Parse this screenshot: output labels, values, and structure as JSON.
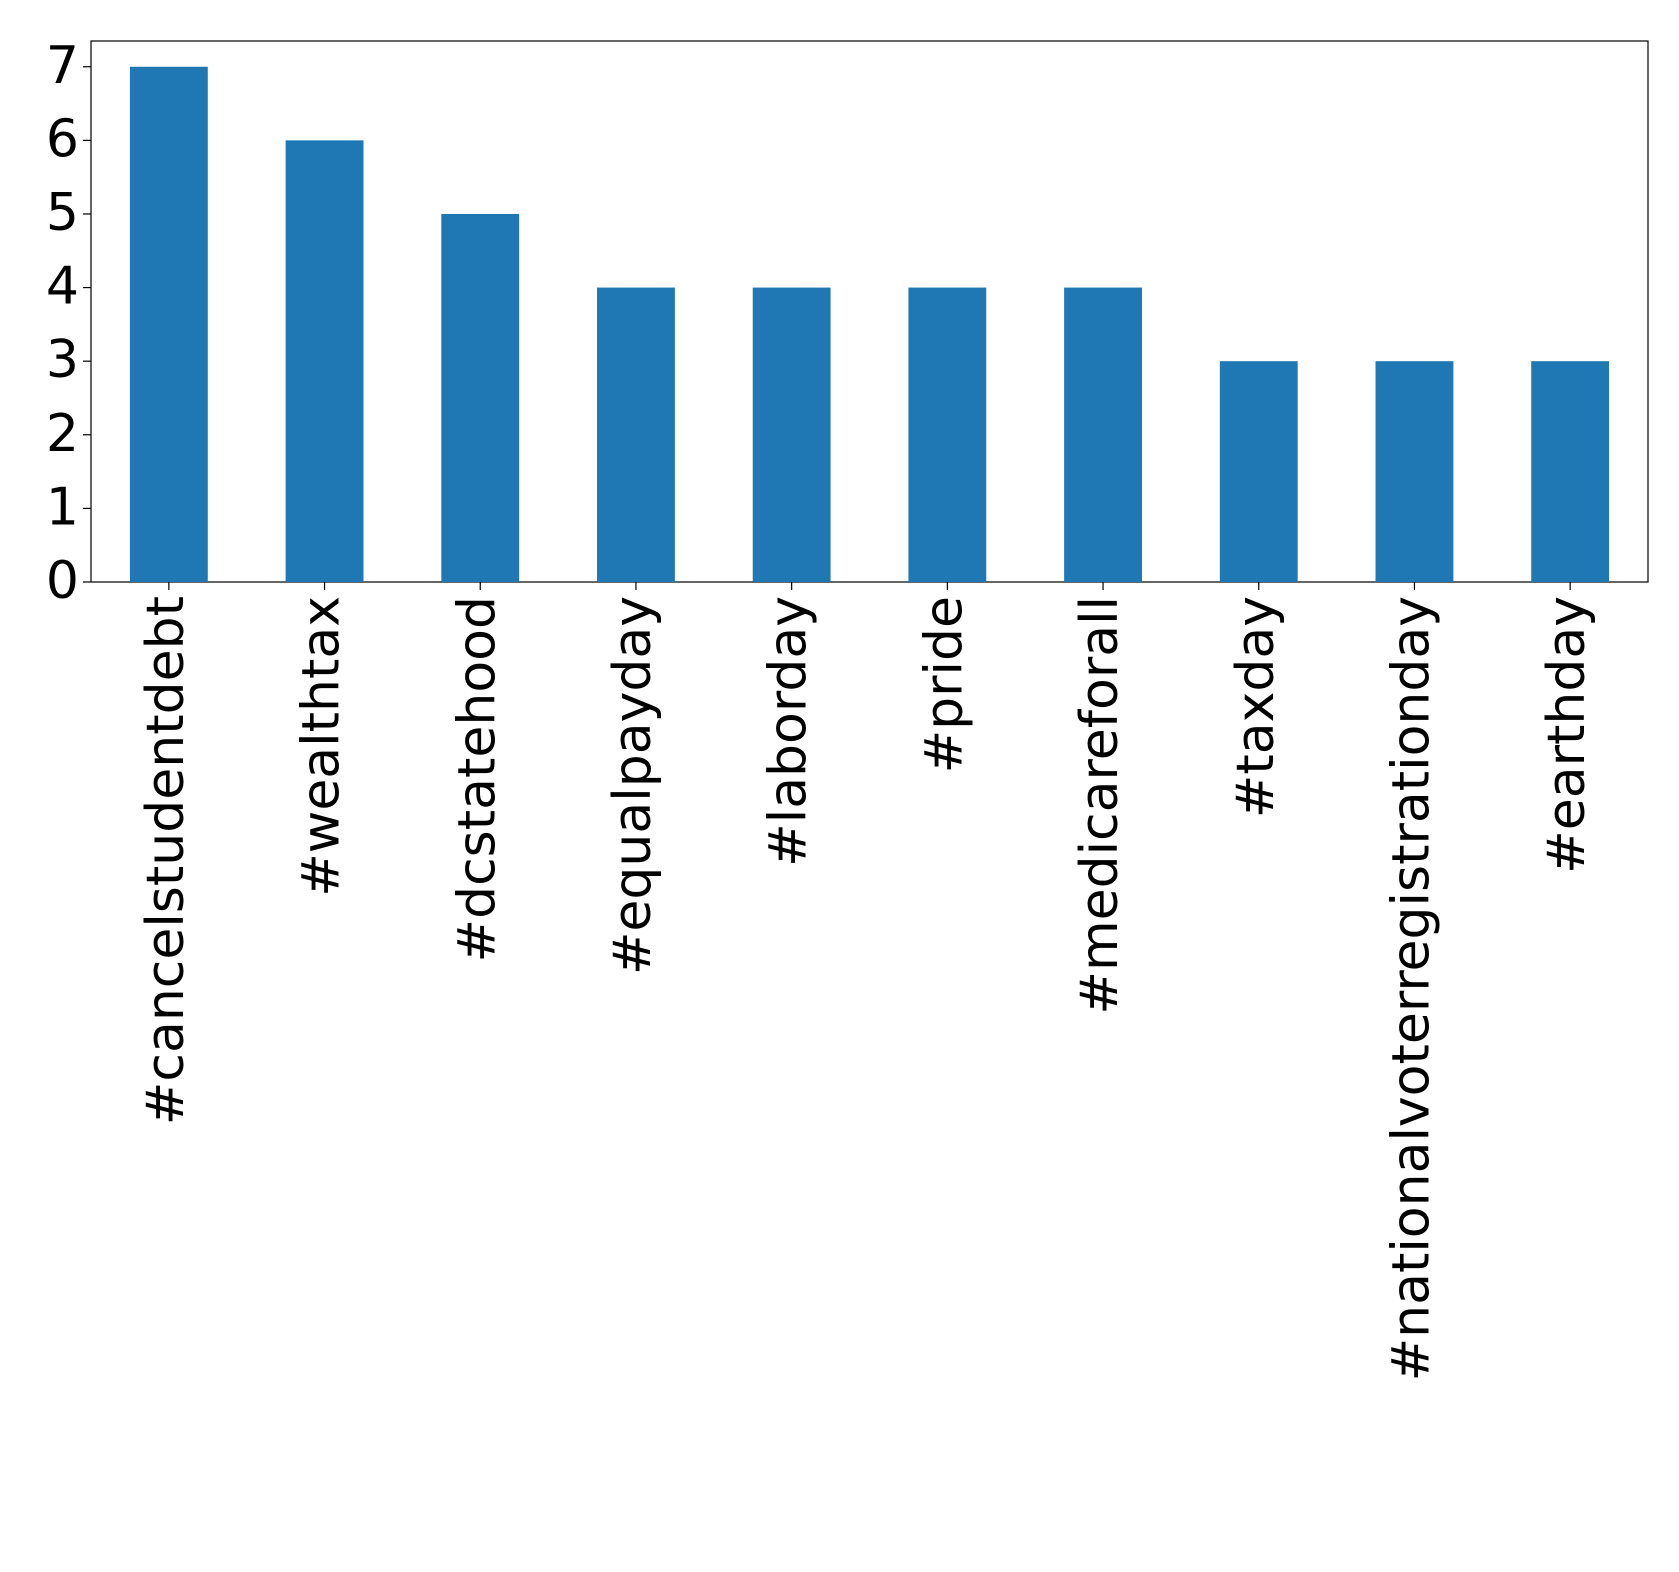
{
  "chart_data": {
    "type": "bar",
    "categories": [
      "#cancelstudentdebt",
      "#wealthtax",
      "#dcstatehood",
      "#equalpayday",
      "#laborday",
      "#pride",
      "#medicareforall",
      "#taxday",
      "#nationalvoterregistrationday",
      "#earthday"
    ],
    "values": [
      7,
      6,
      5,
      4,
      4,
      4,
      4,
      3,
      3,
      3
    ],
    "color": "#1f77b4",
    "ylim": [
      0,
      7.35
    ],
    "yticks": [
      0,
      1,
      2,
      3,
      4,
      5,
      6,
      7
    ],
    "grid": false
  }
}
